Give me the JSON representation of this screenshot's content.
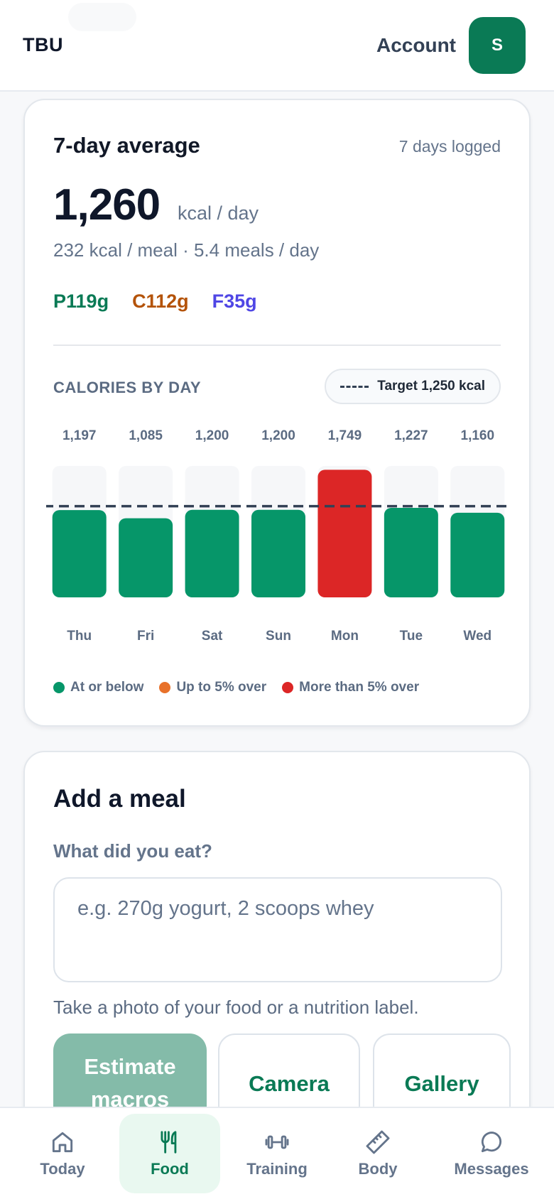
{
  "header": {
    "brand": "TBU",
    "account_label": "Account",
    "avatar_initial": "S"
  },
  "summary": {
    "title": "7-day average",
    "days_logged": "7 days logged",
    "avg_kcal": "1,260",
    "avg_unit": "kcal / day",
    "per_meal": "232 kcal / meal · 5.4 meals / day",
    "macros": {
      "protein": "P119g",
      "carbs": "C112g",
      "fat": "F35g"
    },
    "chart_label": "CALORIES BY DAY",
    "target_label": "Target 1,250 kcal",
    "legend": [
      {
        "label": "At or below",
        "color": "#069669"
      },
      {
        "label": "Up to 5% over",
        "color": "#e8712a"
      },
      {
        "label": "More than 5% over",
        "color": "#dc2626"
      }
    ]
  },
  "chart_data": {
    "type": "bar",
    "title": "CALORIES BY DAY",
    "categories": [
      "Thu",
      "Fri",
      "Sat",
      "Sun",
      "Mon",
      "Tue",
      "Wed"
    ],
    "values": [
      1197,
      1085,
      1200,
      1200,
      1749,
      1227,
      1160
    ],
    "value_labels": [
      "1,197",
      "1,085",
      "1,200",
      "1,200",
      "1,749",
      "1,227",
      "1,160"
    ],
    "target": 1250,
    "bar_colors": [
      "#069669",
      "#069669",
      "#069669",
      "#069669",
      "#dc2626",
      "#069669",
      "#069669"
    ],
    "track_color": "#f6f7f9",
    "target_line_color": "#334155",
    "grid": false
  },
  "meal": {
    "title": "Add a meal",
    "question": "What did you eat?",
    "placeholder": "e.g. 270g yogurt, 2 scoops whey",
    "photo_hint": "Take a photo of your food or a nutrition label.",
    "estimate_label": "Estimate macros",
    "camera_label": "Camera",
    "gallery_label": "Gallery"
  },
  "nav": {
    "items": [
      {
        "label": "Today",
        "icon": "home-icon"
      },
      {
        "label": "Food",
        "icon": "fork-knife-icon"
      },
      {
        "label": "Training",
        "icon": "dumbbell-icon"
      },
      {
        "label": "Body",
        "icon": "ruler-icon"
      },
      {
        "label": "Messages",
        "icon": "chat-bubble-icon"
      }
    ],
    "active": "Food"
  }
}
